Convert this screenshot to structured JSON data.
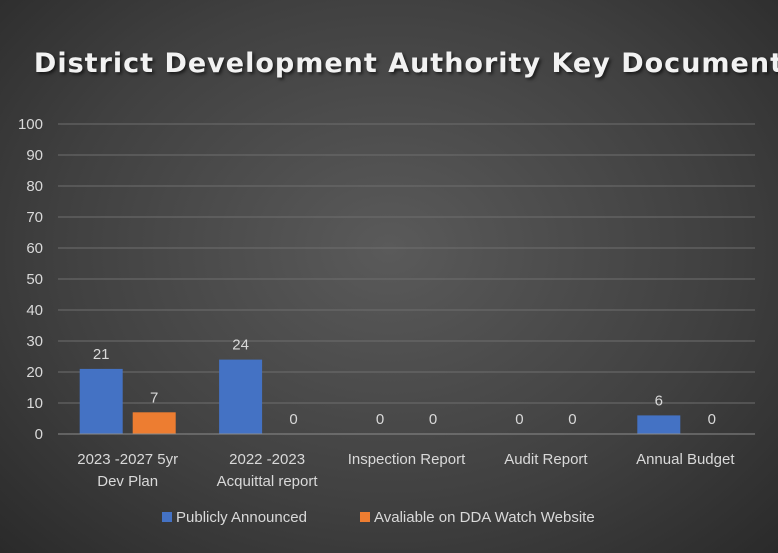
{
  "chart_data": {
    "type": "bar",
    "title": "District Development Authority Key Documents",
    "categories": [
      [
        "2023 -2027 5yr",
        "Dev Plan"
      ],
      [
        "2022 -2023",
        "Acquittal report"
      ],
      [
        "Inspection Report"
      ],
      [
        "Audit Report"
      ],
      [
        "Annual Budget"
      ]
    ],
    "series": [
      {
        "name": "Publicly Announced",
        "values": [
          21,
          24,
          0,
          0,
          6
        ],
        "color": "#4472c4"
      },
      {
        "name": "Avaliable on DDA Watch Website",
        "values": [
          7,
          0,
          0,
          0,
          0
        ],
        "color": "#ed7d31"
      }
    ],
    "ylim": [
      0,
      100
    ],
    "yticks": [
      0,
      10,
      20,
      30,
      40,
      50,
      60,
      70,
      80,
      90,
      100
    ],
    "grid": true,
    "legend_position": "bottom"
  }
}
